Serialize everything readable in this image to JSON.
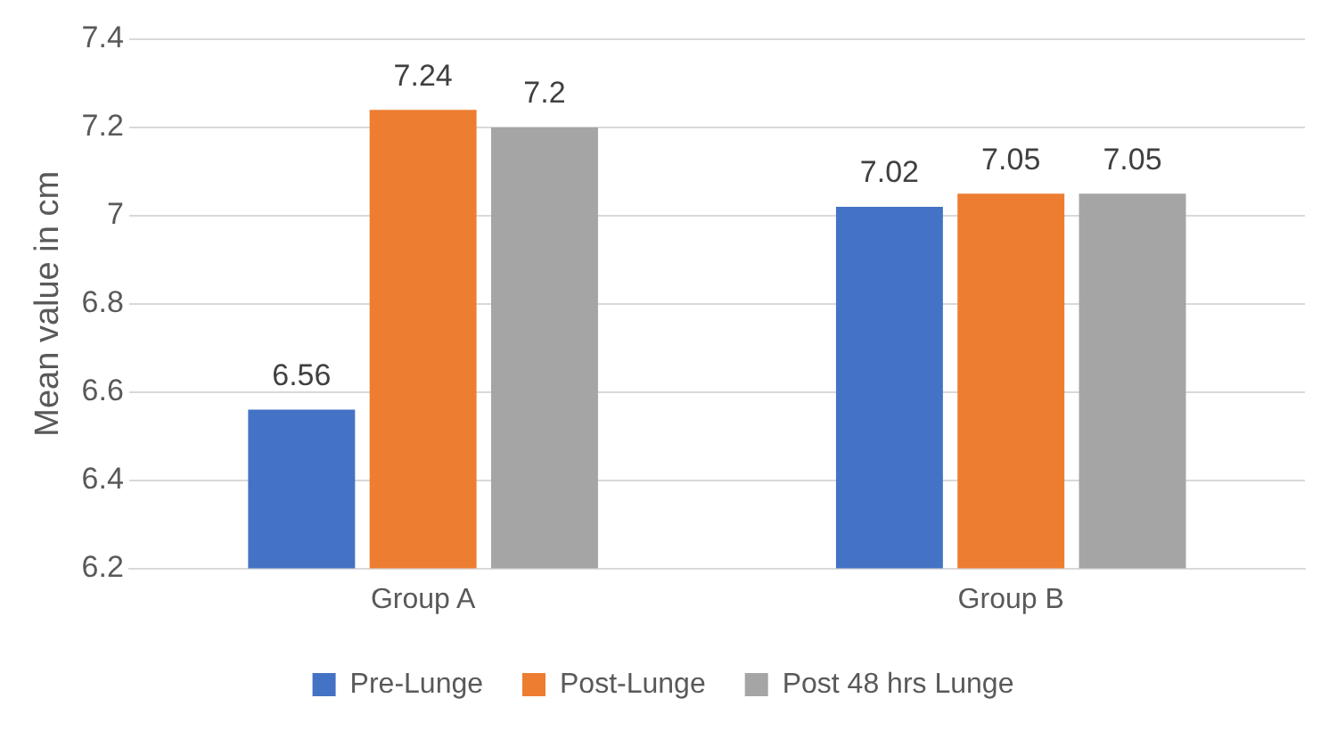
{
  "chart_data": {
    "type": "bar",
    "ylabel": "Mean value in cm",
    "categories": [
      "Group A",
      "Group B"
    ],
    "series": [
      {
        "name": "Pre-Lunge",
        "color": "#4472c4",
        "values": [
          6.56,
          7.02
        ]
      },
      {
        "name": "Post-Lunge",
        "color": "#ed7d31",
        "values": [
          7.24,
          7.05
        ]
      },
      {
        "name": "Post 48 hrs Lunge",
        "color": "#a5a5a5",
        "values": [
          7.2,
          7.05
        ]
      }
    ],
    "ylim": [
      6.2,
      7.4
    ],
    "yticks": [
      6.2,
      6.4,
      6.6,
      6.8,
      7,
      7.2,
      7.4
    ],
    "grid": "y",
    "legend": "bottom",
    "data_labels": true
  }
}
